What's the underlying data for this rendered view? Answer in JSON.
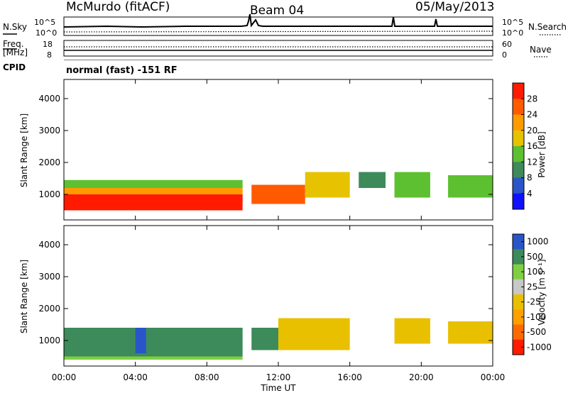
{
  "header": {
    "station": "McMurdo (fitACF)",
    "beam": "Beam 04",
    "date": "05/May/2013",
    "mode": "normal (fast) -151 RF"
  },
  "noise_panel": {
    "left_label": "N.Sky",
    "right_label": "N.Search",
    "left_ticks": [
      "10^5",
      "10^0"
    ],
    "right_ticks": [
      "10^5",
      "10^0"
    ]
  },
  "freq_panel": {
    "left_label_1": "Freq.",
    "left_label_2": "[MHz]",
    "right_label": "Nave",
    "left_ticks": [
      "18",
      "8"
    ],
    "right_ticks": [
      "60",
      "0"
    ]
  },
  "cpid_label": "CPID",
  "colors": {
    "power": [
      "#1010ff",
      "#2a55c8",
      "#3d8a5a",
      "#5cc030",
      "#e6c200",
      "#ff9a00",
      "#ff5a00",
      "#ff1a00"
    ],
    "velocity": [
      "#ff1a00",
      "#ff6a00",
      "#ffa000",
      "#e8c000",
      "#c8c8c8",
      "#7ed040",
      "#3d8a5a",
      "#2a55c8"
    ]
  },
  "chart_data": [
    {
      "type": "heatmap",
      "title": "",
      "xlabel": "Time UT",
      "ylabel": "Slant Range [km]",
      "x_ticks": [
        "00:00",
        "04:00",
        "08:00",
        "12:00",
        "16:00",
        "20:00",
        "00:00"
      ],
      "y_ticks": [
        1000,
        2000,
        3000,
        4000
      ],
      "xlim": [
        0,
        24
      ],
      "ylim": [
        200,
        4600
      ],
      "colorbar_label": "Power [dB]",
      "colorbar_ticks": [
        4,
        8,
        12,
        16,
        20,
        24,
        28
      ],
      "colorbar_range": [
        0,
        32
      ],
      "echo_regions": [
        {
          "t0": 0.0,
          "t1": 10.0,
          "r0": 500,
          "r1": 1000,
          "value": 28
        },
        {
          "t0": 0.0,
          "t1": 10.0,
          "r0": 1000,
          "r1": 1200,
          "value": 20
        },
        {
          "t0": 0.0,
          "t1": 10.0,
          "r0": 1200,
          "r1": 1450,
          "value": 12
        },
        {
          "t0": 10.5,
          "t1": 13.5,
          "r0": 700,
          "r1": 1300,
          "value": 26
        },
        {
          "t0": 13.5,
          "t1": 16.0,
          "r0": 900,
          "r1": 1700,
          "value": 16
        },
        {
          "t0": 16.5,
          "t1": 18.0,
          "r0": 1200,
          "r1": 1700,
          "value": 8
        },
        {
          "t0": 18.5,
          "t1": 20.5,
          "r0": 900,
          "r1": 1700,
          "value": 14
        },
        {
          "t0": 21.5,
          "t1": 24.0,
          "r0": 900,
          "r1": 1600,
          "value": 12
        }
      ]
    },
    {
      "type": "heatmap",
      "title": "",
      "xlabel": "Time UT",
      "ylabel": "Slant Range [km]",
      "x_ticks": [
        "00:00",
        "04:00",
        "08:00",
        "12:00",
        "16:00",
        "20:00",
        "00:00"
      ],
      "y_ticks": [
        1000,
        2000,
        3000,
        4000
      ],
      "xlim": [
        0,
        24
      ],
      "ylim": [
        200,
        4600
      ],
      "colorbar_label": "Velocity [m s⁻¹]",
      "colorbar_ticks": [
        "1000",
        "500",
        "100",
        "25",
        "-25",
        "-100",
        "-500",
        "-1000"
      ],
      "echo_regions": [
        {
          "t0": 0.0,
          "t1": 10.0,
          "r0": 500,
          "r1": 1400,
          "value": 100
        },
        {
          "t0": 0.0,
          "t1": 10.0,
          "r0": 400,
          "r1": 500,
          "value": 25
        },
        {
          "t0": 4.0,
          "t1": 4.6,
          "r0": 600,
          "r1": 1400,
          "value": 500
        },
        {
          "t0": 10.5,
          "t1": 12.0,
          "r0": 700,
          "r1": 1400,
          "value": 100
        },
        {
          "t0": 12.0,
          "t1": 16.0,
          "r0": 700,
          "r1": 1700,
          "value": -100
        },
        {
          "t0": 18.5,
          "t1": 20.5,
          "r0": 900,
          "r1": 1700,
          "value": -100
        },
        {
          "t0": 21.5,
          "t1": 24.0,
          "r0": 900,
          "r1": 1600,
          "value": -100
        }
      ]
    }
  ]
}
